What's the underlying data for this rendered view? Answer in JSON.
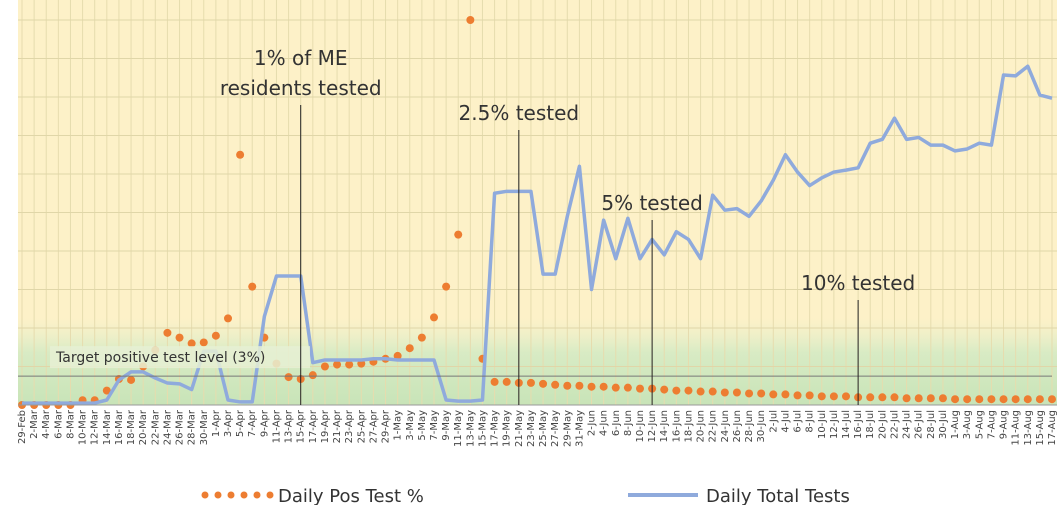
{
  "chart_data": {
    "type": "line",
    "categories": [
      "29-Feb",
      "2-Mar",
      "4-Mar",
      "6-Mar",
      "8-Mar",
      "10-Mar",
      "12-Mar",
      "14-Mar",
      "16-Mar",
      "18-Mar",
      "20-Mar",
      "22-Mar",
      "24-Mar",
      "26-Mar",
      "28-Mar",
      "30-Mar",
      "1-Apr",
      "3-Apr",
      "5-Apr",
      "7-Apr",
      "9-Apr",
      "11-Apr",
      "13-Apr",
      "15-Apr",
      "17-Apr",
      "19-Apr",
      "21-Apr",
      "23-Apr",
      "25-Apr",
      "27-Apr",
      "29-Apr",
      "1-May",
      "3-May",
      "5-May",
      "7-May",
      "9-May",
      "11-May",
      "13-May",
      "15-May",
      "17-May",
      "19-May",
      "21-May",
      "23-May",
      "25-May",
      "27-May",
      "29-May",
      "31-May",
      "2-Jun",
      "4-Jun",
      "6-Jun",
      "8-Jun",
      "10-Jun",
      "12-Jun",
      "14-Jun",
      "16-Jun",
      "18-Jun",
      "20-Jun",
      "22-Jun",
      "24-Jun",
      "26-Jun",
      "28-Jun",
      "30-Jun",
      "2-Jul",
      "4-Jul",
      "6-Jul",
      "8-Jul",
      "10-Jul",
      "12-Jul",
      "14-Jul",
      "16-Jul",
      "18-Jul",
      "20-Jul",
      "22-Jul",
      "24-Jul",
      "26-Jul",
      "28-Jul",
      "30-Jul",
      "1-Aug",
      "3-Aug",
      "5-Aug",
      "7-Aug",
      "9-Aug",
      "11-Aug",
      "13-Aug",
      "15-Aug",
      "17-Aug"
    ],
    "series": [
      {
        "name": "Daily Pos Test %",
        "color": "#ed7d31",
        "style": "dotted",
        "values": [
          0,
          0,
          0,
          0,
          0,
          0.5,
          0.5,
          1.5,
          2.7,
          2.6,
          4,
          5.7,
          7.5,
          7,
          6.4,
          6.5,
          7.2,
          9,
          26,
          12.3,
          7,
          4.3,
          2.9,
          2.7,
          3.1,
          4,
          4.2,
          4.2,
          4.3,
          4.5,
          4.8,
          5.1,
          5.9,
          7,
          9.1,
          12.3,
          17.7,
          40,
          4.8,
          2.4,
          2.4,
          2.3,
          2.3,
          2.2,
          2.1,
          2,
          2,
          1.9,
          1.9,
          1.8,
          1.8,
          1.7,
          1.7,
          1.6,
          1.5,
          1.5,
          1.4,
          1.4,
          1.3,
          1.3,
          1.2,
          1.2,
          1.1,
          1.1,
          1,
          1,
          0.9,
          0.9,
          0.9,
          0.8,
          0.8,
          0.8,
          0.8,
          0.7,
          0.7,
          0.7,
          0.7,
          0.6,
          0.6,
          0.6,
          0.6,
          0.6,
          0.6,
          0.6,
          0.6,
          0.6
        ]
      },
      {
        "name": "Daily Total Tests",
        "color": "#8faadc",
        "style": "solid",
        "axis": "y2",
        "values": [
          0.5,
          0.5,
          0.5,
          0.5,
          0.5,
          0.5,
          0.5,
          1.3,
          6.5,
          8.6,
          8.6,
          7,
          5.7,
          5.5,
          4,
          14,
          14,
          1.3,
          0.8,
          0.8,
          23,
          33.5,
          33.5,
          33.5,
          11,
          11.7,
          11.7,
          11.7,
          11.7,
          12,
          12,
          11.7,
          11.7,
          11.7,
          11.7,
          1.3,
          1,
          1,
          1.3,
          55,
          55.5,
          55.5,
          55.5,
          34,
          34,
          49,
          62,
          30,
          48,
          38,
          48.5,
          38,
          43,
          39,
          45,
          43,
          38,
          54.5,
          50.6,
          51,
          49,
          53,
          58.4,
          65,
          60.5,
          57,
          59,
          60.5,
          61,
          61.6,
          68,
          69,
          74.5,
          69,
          69.5,
          67.5,
          67.5,
          66,
          66.5,
          68,
          67.5,
          85.7,
          85.5,
          88,
          80.5,
          79.7
        ]
      }
    ],
    "ylim": [
      0,
      40
    ],
    "yticks": [
      0,
      4,
      8,
      12,
      16,
      20,
      24,
      28,
      32,
      36,
      40
    ],
    "y2lim": [
      0,
      100
    ],
    "grid": true,
    "target": {
      "label": "Target positive test level (3%)",
      "value": 3
    },
    "annotations": [
      {
        "text": [
          "1% of ME",
          "residents tested"
        ],
        "x": "15-Apr"
      },
      {
        "text": [
          "2.5% tested"
        ],
        "x": "21-May"
      },
      {
        "text": [
          "5% tested"
        ],
        "x": "12-Jun"
      },
      {
        "text": [
          "10% tested"
        ],
        "x": "16-Jul"
      }
    ]
  }
}
